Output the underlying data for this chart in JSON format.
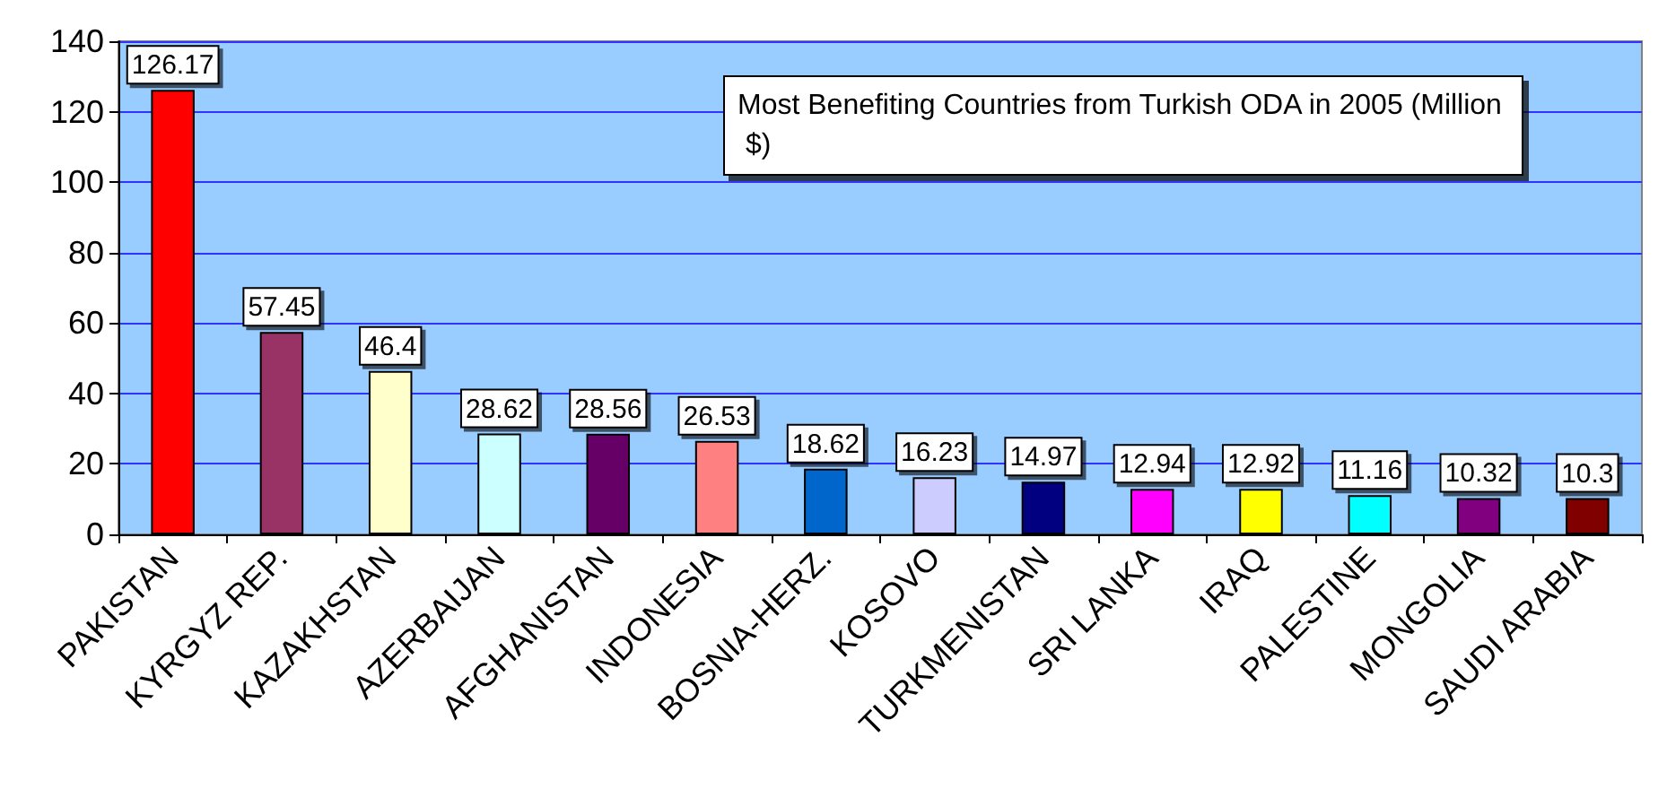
{
  "chart_data": {
    "type": "bar",
    "title": "Most Benefiting Countries from Turkish ODA in 2005 (Million $)",
    "categories": [
      "PAKISTAN",
      "KYRGYZ REP.",
      "KAZAKHSTAN",
      "AZERBAIJAN",
      "AFGHANISTAN",
      "INDONESIA",
      "BOSNIA-HERZ.",
      "KOSOVO",
      "TURKMENISTAN",
      "SRI LANKA",
      "IRAQ",
      "PALESTINE",
      "MONGOLIA",
      "SAUDI ARABIA"
    ],
    "values": [
      126.17,
      57.45,
      46.4,
      28.62,
      28.56,
      26.53,
      18.62,
      16.23,
      14.97,
      12.94,
      12.92,
      11.16,
      10.32,
      10.3
    ],
    "colors": [
      "#ff0000",
      "#993366",
      "#ffffcc",
      "#ccffff",
      "#660066",
      "#ff8080",
      "#0066cc",
      "#ccccff",
      "#000080",
      "#ff00ff",
      "#ffff00",
      "#00ffff",
      "#800080",
      "#800000"
    ],
    "ylim": [
      0,
      140
    ],
    "yticks": [
      0,
      20,
      40,
      60,
      80,
      100,
      120,
      140
    ],
    "grid": "y",
    "data_labels": true
  }
}
